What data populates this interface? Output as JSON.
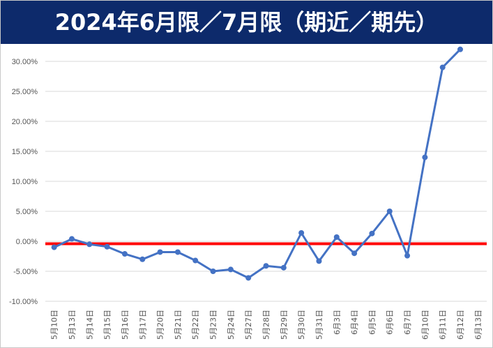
{
  "chart_data": {
    "type": "line",
    "title": "2024年6月限／7月限（期近／期先）",
    "xlabel": "",
    "ylabel": "",
    "categories": [
      "5月10日",
      "5月13日",
      "5月14日",
      "5月15日",
      "5月16日",
      "5月17日",
      "5月20日",
      "5月21日",
      "5月22日",
      "5月23日",
      "5月24日",
      "5月27日",
      "5月28日",
      "5月29日",
      "5月30日",
      "5月31日",
      "6月3日",
      "6月4日",
      "6月5日",
      "6月6日",
      "6月7日",
      "6月10日",
      "6月11日",
      "6月12日",
      "6月13日"
    ],
    "y_ticks": [
      "30.00%",
      "25.00%",
      "20.00%",
      "15.00%",
      "10.00%",
      "5.00%",
      "0.00%",
      "-5.00%",
      "-10.00%"
    ],
    "ylim": [
      -10,
      32
    ],
    "series": [
      {
        "values": [
          -1.0,
          0.4,
          -0.5,
          -0.9,
          -2.1,
          -3.0,
          -1.8,
          -1.8,
          -3.2,
          -5.0,
          -4.7,
          -6.1,
          -4.1,
          -4.4,
          1.4,
          -3.3,
          0.7,
          -2.0,
          1.3,
          5.0,
          -2.4,
          14.0,
          29.0,
          32.0,
          null
        ],
        "color": "#4472c4"
      }
    ],
    "reference_line": {
      "value": -0.4,
      "color": "#ff0000"
    },
    "grid": true,
    "legend": "none"
  }
}
